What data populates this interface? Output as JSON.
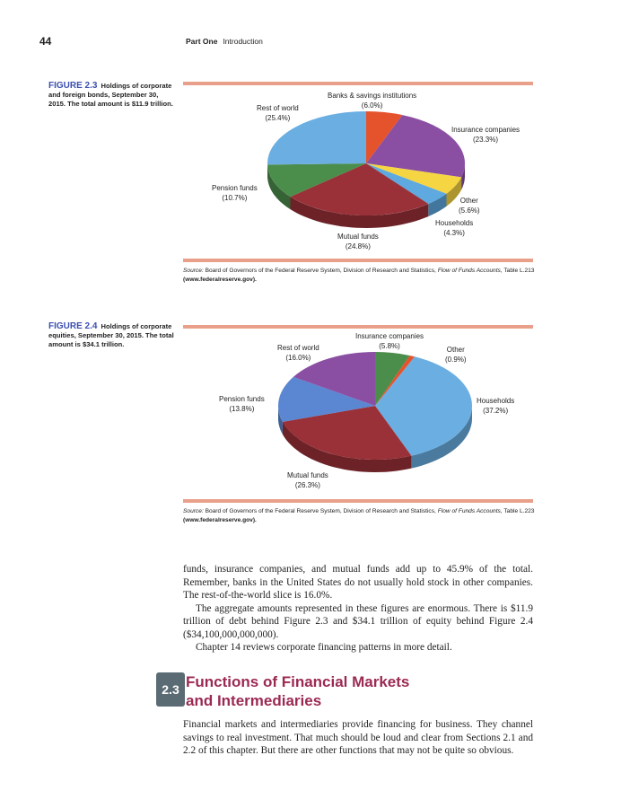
{
  "header": {
    "page_number": "44",
    "part": "Part One",
    "section": "Introduction"
  },
  "figure1": {
    "label": "FIGURE 2.3",
    "caption": "Holdings of corporate and foreign bonds, September 30, 2015. The total amount is $11.9 trillion.",
    "source_prefix": "Source:",
    "source_text": "Board of Governors of the Federal Reserve System, Division of Research and Statistics,",
    "source_italic": "Flow of Funds Accounts,",
    "source_table": "Table L.213",
    "source_url": "(www.federalreserve.gov)."
  },
  "figure2": {
    "label": "FIGURE 2.4",
    "caption": "Holdings of corporate equities, September 30, 2015. The total amount is $34.1 trillion.",
    "source_prefix": "Source:",
    "source_text": "Board of Governors of the Federal Reserve System, Division of Research and Statistics,",
    "source_italic": "Flow of Funds Accounts,",
    "source_table": "Table L.223",
    "source_url": "(www.federalreserve.gov)."
  },
  "chart_data": [
    {
      "type": "pie",
      "title": "Holdings of corporate and foreign bonds",
      "categories": [
        "Banks & savings institutions",
        "Insurance companies",
        "Other",
        "Households",
        "Mutual funds",
        "Pension funds",
        "Rest of world"
      ],
      "values": [
        6.0,
        23.3,
        5.6,
        4.3,
        24.8,
        10.7,
        25.4
      ],
      "value_labels": [
        "(6.0%)",
        "(23.3%)",
        "(5.6%)",
        "(4.3%)",
        "(24.8%)",
        "(10.7%)",
        "(25.4%)"
      ],
      "colors": [
        "#e5532c",
        "#8a4fa2",
        "#f6d542",
        "#5ea9df",
        "#9a3138",
        "#4b8d4b",
        "#6aaee2"
      ]
    },
    {
      "type": "pie",
      "title": "Holdings of corporate equities",
      "categories": [
        "Insurance companies",
        "Other",
        "Households",
        "Mutual funds",
        "Pension funds",
        "Rest of world"
      ],
      "values": [
        5.8,
        0.9,
        37.2,
        26.3,
        13.8,
        16.0
      ],
      "value_labels": [
        "(5.8%)",
        "(0.9%)",
        "(37.2%)",
        "(26.3%)",
        "(13.8%)",
        "(16.0%)"
      ],
      "colors": [
        "#4b8d4b",
        "#e5532c",
        "#6aaee2",
        "#9a3138",
        "#5a86d2",
        "#8a4fa2"
      ]
    }
  ],
  "body": {
    "p1": "funds, insurance companies, and mutual funds add up to 45.9% of the total. Remember, banks in the United States do not usually hold stock in other companies. The rest-of-the-world slice is 16.0%.",
    "p2": "The aggregate amounts represented in these figures are enormous. There is $11.9 trillion of debt behind Figure 2.3 and $34.1 trillion of equity behind Figure 2.4 ($34,100,000,000,000).",
    "p3": "Chapter 14 reviews corporate financing patterns in more detail.",
    "section_number": "2.3",
    "section_title_1": "Functions of Financial Markets",
    "section_title_2": "and Intermediaries",
    "p4": "Financial markets and intermediaries provide financing for business. They channel savings to real investment. That much should be loud and clear from Sections 2.1 and 2.2 of this chapter. But there are other functions that may not be quite so obvious."
  }
}
